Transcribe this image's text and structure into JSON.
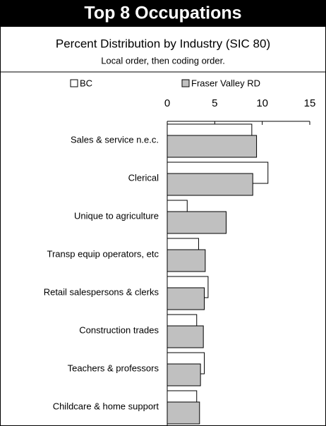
{
  "chart_data": {
    "type": "hbar",
    "title": "Top 8 Occupations",
    "subtitle": "Percent Distribution by Industry (SIC 80)",
    "note": "Local order, then coding order.",
    "categories": [
      "Sales & service  n.e.c.",
      "Clerical",
      "Unique to agriculture",
      "Transp equip operators, etc",
      "Retail salespersons & clerks",
      "Construction trades",
      "Teachers & professors",
      "Childcare & home support"
    ],
    "series": [
      {
        "name": "BC",
        "color": "#ffffff",
        "values": [
          8.9,
          10.6,
          2.1,
          3.3,
          4.3,
          3.1,
          3.9,
          3.1
        ]
      },
      {
        "name": "Fraser Valley RD",
        "color": "#c0c0c0",
        "values": [
          9.4,
          9.0,
          6.2,
          4.0,
          3.9,
          3.8,
          3.5,
          3.4
        ]
      }
    ],
    "xlim": [
      0,
      15
    ],
    "xticks": [
      0,
      5,
      10,
      15
    ]
  }
}
